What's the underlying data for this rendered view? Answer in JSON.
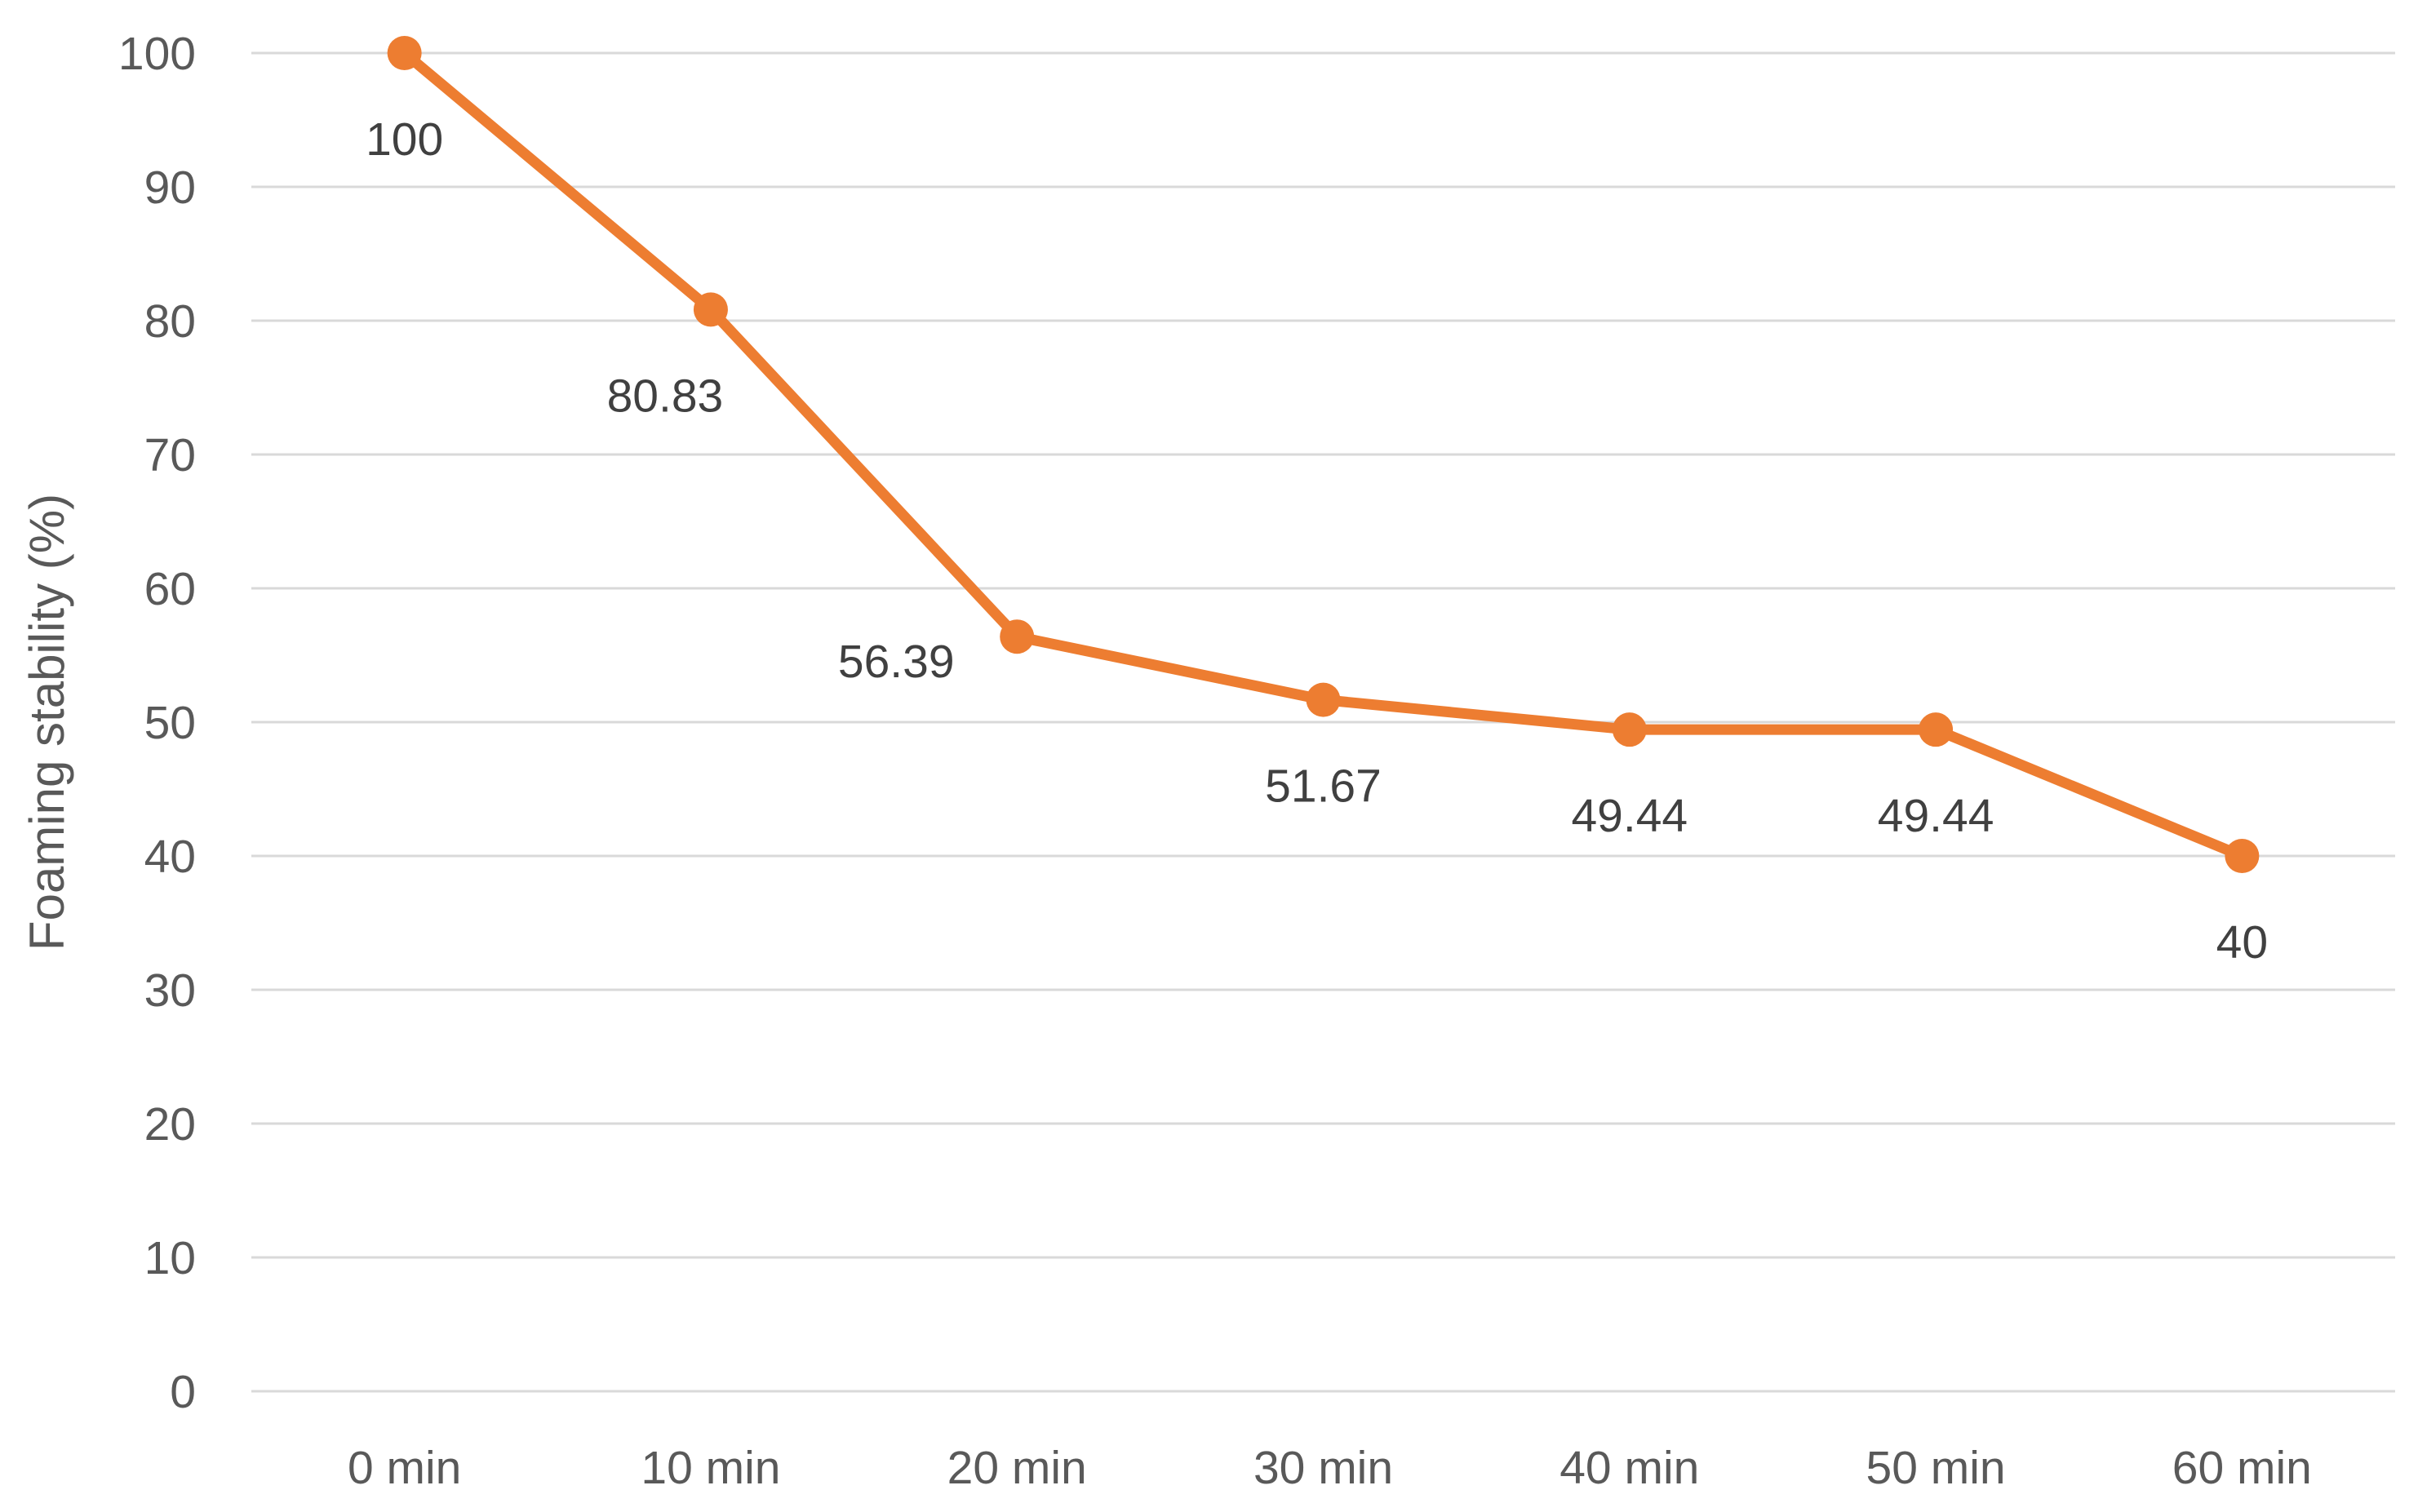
{
  "chart_data": {
    "type": "line",
    "title": "",
    "xlabel": "",
    "ylabel": "Foaming stability (%)",
    "categories": [
      "0 min",
      "10 min",
      "20 min",
      "30 min",
      "40 min",
      "50 min",
      "60 min"
    ],
    "series": [
      {
        "values": [
          100,
          80.83,
          56.39,
          51.67,
          49.44,
          49.44,
          40
        ],
        "color": "#ed7d31",
        "data_labels": [
          "100",
          "80.83",
          "56.39",
          "51.67",
          "49.44",
          "49.44",
          "40"
        ]
      }
    ],
    "ylim": [
      0,
      100
    ],
    "yticks": [
      "0",
      "10",
      "20",
      "30",
      "40",
      "50",
      "60",
      "70",
      "80",
      "90",
      "100"
    ],
    "grid": true,
    "legend": "none"
  }
}
